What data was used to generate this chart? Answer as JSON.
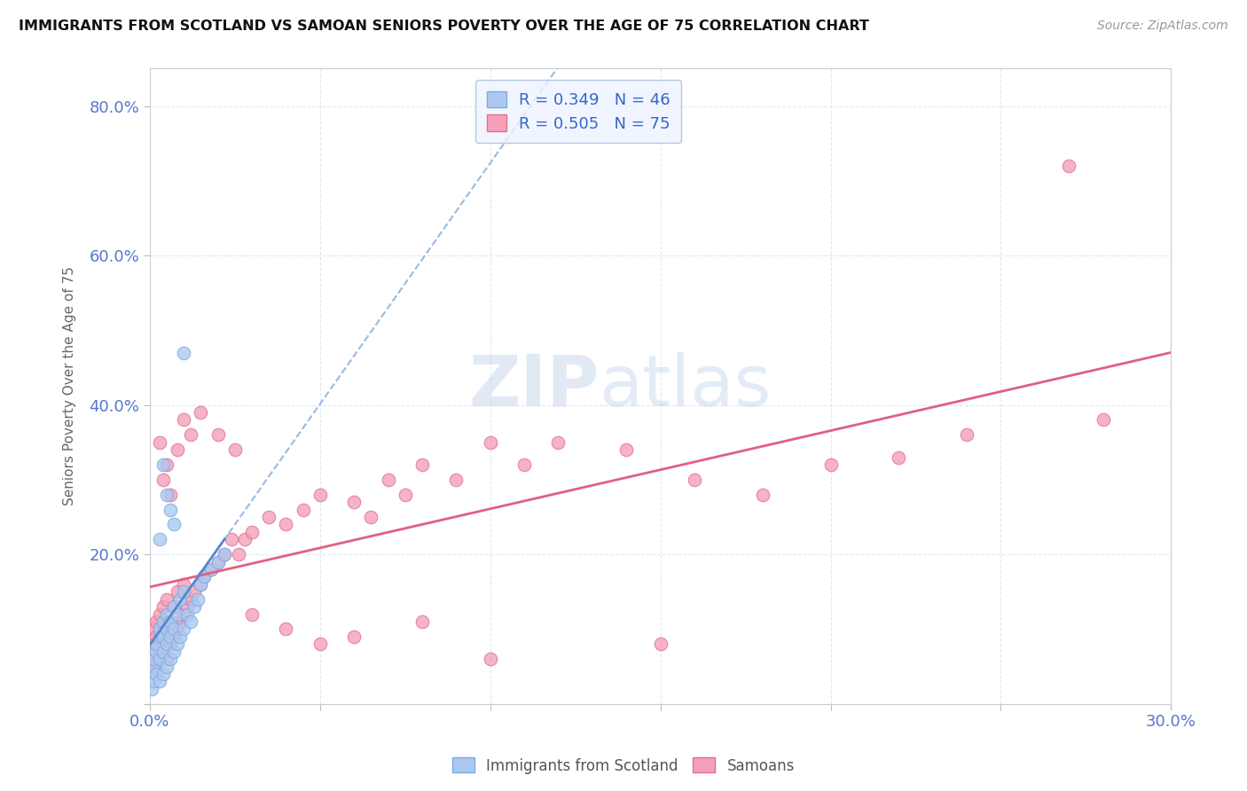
{
  "title": "IMMIGRANTS FROM SCOTLAND VS SAMOAN SENIORS POVERTY OVER THE AGE OF 75 CORRELATION CHART",
  "source": "Source: ZipAtlas.com",
  "ylabel": "Seniors Poverty Over the Age of 75",
  "xlim": [
    0.0,
    0.3
  ],
  "ylim": [
    0.0,
    0.85
  ],
  "scotland_R": 0.349,
  "scotland_N": 46,
  "samoan_R": 0.505,
  "samoan_N": 75,
  "scotland_color": "#adc8f0",
  "samoan_color": "#f4a0b8",
  "scotland_edge_color": "#7aaae0",
  "samoan_edge_color": "#e07090",
  "scotland_line_color": "#5588cc",
  "samoan_line_color": "#e06080",
  "dashed_line_color": "#99bbdd",
  "legend_box_color": "#eef3ff",
  "legend_edge_color": "#aabbdd",
  "legend_text_color": "#3366cc",
  "watermark_zip": "ZIP",
  "watermark_atlas": "atlas",
  "axis_tick_color": "#5577cc",
  "grid_color": "#d0dff0",
  "ylabel_color": "#666666",
  "scotland_x": [
    0.0005,
    0.001,
    0.001,
    0.001,
    0.002,
    0.002,
    0.002,
    0.003,
    0.003,
    0.003,
    0.003,
    0.004,
    0.004,
    0.004,
    0.004,
    0.005,
    0.005,
    0.005,
    0.005,
    0.006,
    0.006,
    0.006,
    0.007,
    0.007,
    0.007,
    0.008,
    0.008,
    0.009,
    0.009,
    0.01,
    0.01,
    0.011,
    0.012,
    0.013,
    0.014,
    0.015,
    0.016,
    0.018,
    0.02,
    0.022,
    0.01,
    0.004,
    0.006,
    0.007,
    0.003,
    0.005
  ],
  "scotland_y": [
    0.02,
    0.03,
    0.05,
    0.06,
    0.04,
    0.07,
    0.08,
    0.03,
    0.06,
    0.09,
    0.1,
    0.04,
    0.07,
    0.09,
    0.11,
    0.05,
    0.08,
    0.1,
    0.12,
    0.06,
    0.09,
    0.11,
    0.07,
    0.1,
    0.13,
    0.08,
    0.12,
    0.09,
    0.14,
    0.1,
    0.15,
    0.12,
    0.11,
    0.13,
    0.14,
    0.16,
    0.17,
    0.18,
    0.19,
    0.2,
    0.47,
    0.32,
    0.26,
    0.24,
    0.22,
    0.28
  ],
  "samoan_x": [
    0.0005,
    0.001,
    0.001,
    0.001,
    0.002,
    0.002,
    0.002,
    0.003,
    0.003,
    0.003,
    0.004,
    0.004,
    0.004,
    0.005,
    0.005,
    0.005,
    0.006,
    0.006,
    0.007,
    0.007,
    0.008,
    0.008,
    0.009,
    0.01,
    0.01,
    0.011,
    0.012,
    0.013,
    0.015,
    0.016,
    0.018,
    0.02,
    0.022,
    0.024,
    0.026,
    0.028,
    0.03,
    0.035,
    0.04,
    0.045,
    0.05,
    0.06,
    0.065,
    0.07,
    0.075,
    0.08,
    0.09,
    0.1,
    0.11,
    0.12,
    0.14,
    0.16,
    0.18,
    0.2,
    0.22,
    0.24,
    0.003,
    0.004,
    0.005,
    0.006,
    0.008,
    0.01,
    0.012,
    0.015,
    0.02,
    0.025,
    0.03,
    0.04,
    0.05,
    0.06,
    0.08,
    0.1,
    0.15,
    0.27,
    0.28
  ],
  "samoan_y": [
    0.05,
    0.06,
    0.08,
    0.1,
    0.05,
    0.09,
    0.11,
    0.06,
    0.08,
    0.12,
    0.07,
    0.1,
    0.13,
    0.06,
    0.09,
    0.14,
    0.08,
    0.11,
    0.09,
    0.13,
    0.1,
    0.15,
    0.11,
    0.12,
    0.16,
    0.13,
    0.14,
    0.15,
    0.16,
    0.17,
    0.18,
    0.19,
    0.2,
    0.22,
    0.2,
    0.22,
    0.23,
    0.25,
    0.24,
    0.26,
    0.28,
    0.27,
    0.25,
    0.3,
    0.28,
    0.32,
    0.3,
    0.35,
    0.32,
    0.35,
    0.34,
    0.3,
    0.28,
    0.32,
    0.33,
    0.36,
    0.35,
    0.3,
    0.32,
    0.28,
    0.34,
    0.38,
    0.36,
    0.39,
    0.36,
    0.34,
    0.12,
    0.1,
    0.08,
    0.09,
    0.11,
    0.06,
    0.08,
    0.72,
    0.38
  ]
}
